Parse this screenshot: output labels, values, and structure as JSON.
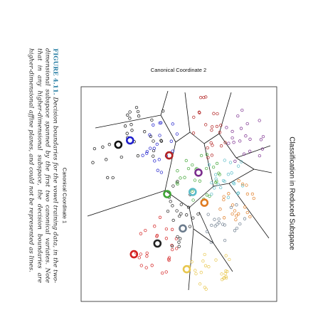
{
  "figure_caption": {
    "label": "FIGURE 4.11.",
    "text": "Decision boundaries for the vowel training data, in the two-dimensional subspace spanned by the first two canonical variates. Note that in any higher-dimensional subspace, the decision boundaries are higher-dimensional affine planes, and could not be represented as lines."
  },
  "chart_data": {
    "type": "scatter",
    "title": "Classification in Reduced Subspace",
    "xlabel": "Canonical Coordinate 1",
    "ylabel": "Canonical Coordinate 2",
    "orientation": "rotated-90",
    "grid": false,
    "legend": "none",
    "xlim": [
      -5,
      5
    ],
    "ylim": [
      -5,
      5
    ],
    "colors": [
      "#111111",
      "#1f1fcc",
      "#b22222",
      "#7b2d8e",
      "#3fa535",
      "#5bbcc8",
      "#e07b22",
      "#6b7b8c",
      "#e8c74e",
      "#d42020",
      "#222222"
    ],
    "centroids": [
      {
        "class": 1,
        "color": "#111111",
        "x": -2.3,
        "y": 3.1
      },
      {
        "class": 2,
        "color": "#1f1fcc",
        "x": -2.5,
        "y": 2.5
      },
      {
        "class": 3,
        "color": "#b22222",
        "x": -1.8,
        "y": 0.5
      },
      {
        "class": 4,
        "color": "#7b2d8e",
        "x": -1.0,
        "y": -1.0
      },
      {
        "class": 5,
        "color": "#3fa535",
        "x": 0.0,
        "y": 0.6
      },
      {
        "class": 6,
        "color": "#5bbcc8",
        "x": -0.1,
        "y": -0.7
      },
      {
        "class": 7,
        "color": "#e07b22",
        "x": 0.4,
        "y": -1.3
      },
      {
        "class": 8,
        "color": "#6b7b8c",
        "x": 1.6,
        "y": -0.2
      },
      {
        "class": 9,
        "color": "#e8c74e",
        "x": 3.5,
        "y": -0.4
      },
      {
        "class": 10,
        "color": "#d42020",
        "x": 2.8,
        "y": 2.3
      },
      {
        "class": 11,
        "color": "#222222",
        "x": 2.3,
        "y": 1.1
      }
    ]
  }
}
